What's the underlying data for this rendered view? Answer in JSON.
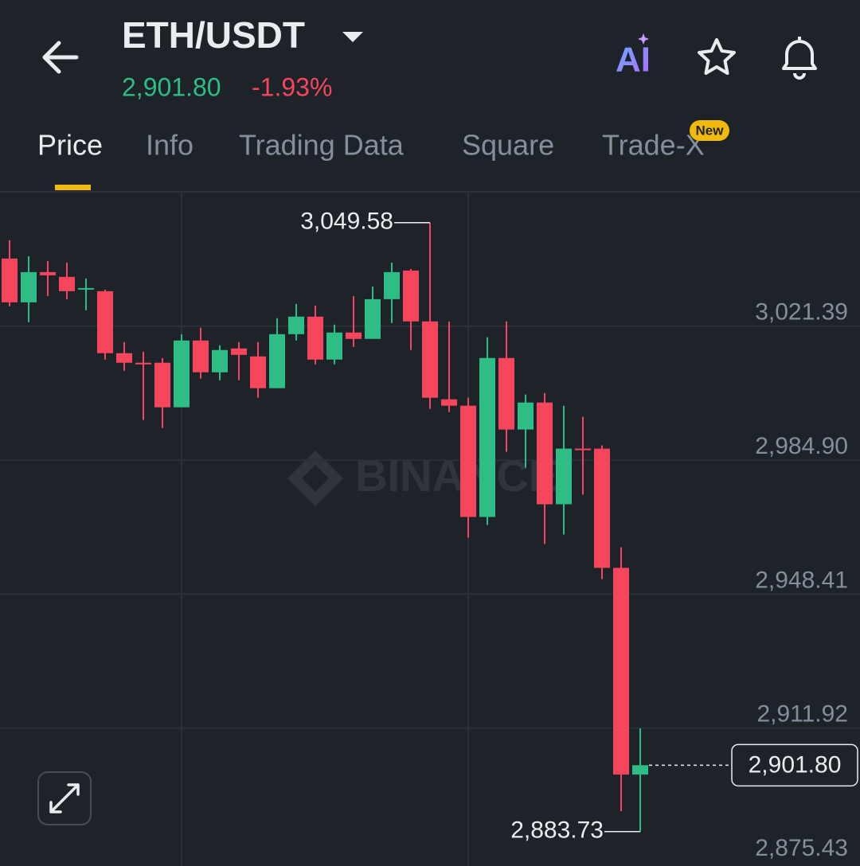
{
  "header": {
    "title": "ETH/USDT",
    "price": "2,901.80",
    "change": "-1.93%",
    "ai": "AI"
  },
  "tabs": [
    "Price",
    "Info",
    "Trading Data",
    "Square",
    "Trade-X"
  ],
  "tab_badge": "New",
  "chart_data": {
    "type": "candlestick",
    "watermark": "BINANCE",
    "open": [
      3039.8,
      3027.89,
      3036.12,
      3034.82,
      3031.35,
      3030.92,
      3014.03,
      3011.43,
      3011.43,
      2999.3,
      3017.49,
      3008.83,
      3015.33,
      3013.16,
      3004.5,
      3019.22,
      3023.99,
      3012.29,
      3019.66,
      3017.93,
      3028.75,
      3036.55,
      3022.69,
      3001.47,
      2999.73,
      2969.42,
      3012.73,
      2993.24,
      3000.6,
      2972.88,
      2988.04,
      2988.04,
      2955.56,
      2899.25
    ],
    "high": [
      3044.78,
      3040.45,
      3039.15,
      3038.71,
      3034.38,
      3031.35,
      3017.06,
      3014.46,
      3012.73,
      3019.22,
      3020.96,
      3016.19,
      3017.06,
      3017.06,
      3023.56,
      3027.45,
      3027.02,
      3021.82,
      3029.62,
      3032.22,
      3038.71,
      3036.98,
      3049.58,
      3022.69,
      3001.9,
      3018.36,
      3022.69,
      3002.77,
      3003.2,
      2999.73,
      2996.7,
      2988.91,
      2961.19,
      2911.81
    ],
    "low": [
      3026.8,
      3022.47,
      3029.62,
      3028.75,
      3025.72,
      3012.29,
      3009.26,
      2995.84,
      2993.67,
      2999.3,
      3007.1,
      3006.66,
      3006.66,
      3001.9,
      3004.5,
      3017.49,
      3011.0,
      3011.0,
      3015.76,
      3017.93,
      3022.26,
      3014.89,
      2998.87,
      2998.0,
      2963.79,
      2967.25,
      2987.17,
      2982.84,
      2962.05,
      2964.65,
      2975.48,
      2952.52,
      2889.29,
      2883.73
    ],
    "close": [
      3027.89,
      3036.12,
      3035.25,
      3030.92,
      3031.78,
      3014.03,
      3011.43,
      3011.0,
      2999.3,
      3017.49,
      3008.83,
      3014.89,
      3013.59,
      3004.5,
      3019.22,
      3023.99,
      3012.29,
      3019.66,
      3017.93,
      3028.75,
      3036.12,
      3022.69,
      3001.9,
      2999.73,
      2969.42,
      3012.73,
      2993.24,
      3000.6,
      2972.88,
      2988.04,
      2987.61,
      2955.56,
      2899.25,
      2901.8
    ],
    "up_color": "#2ebd85",
    "down_color": "#f6465d",
    "ylim": [
      2875.43,
      3057.77
    ],
    "yticks": [
      {
        "value": 3021.39,
        "label": "3,021.39"
      },
      {
        "value": 2984.9,
        "label": "2,984.90"
      },
      {
        "value": 2948.41,
        "label": "2,948.41"
      },
      {
        "value": 2911.92,
        "label": "2,911.92"
      },
      {
        "value": 2875.43,
        "label": "2,875.43"
      }
    ],
    "grid": true,
    "annotations": [
      {
        "value": 3049.58,
        "label": "3,049.58"
      },
      {
        "value": 2883.73,
        "label": "2,883.73"
      }
    ],
    "last_price": {
      "value": 2901.8,
      "label": "2,901.80"
    }
  }
}
